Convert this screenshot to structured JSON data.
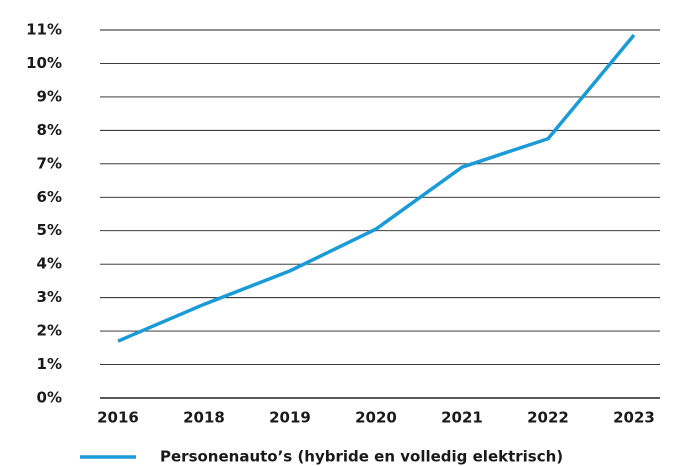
{
  "chart_data": {
    "type": "line",
    "categories": [
      "2016",
      "2018",
      "2019",
      "2020",
      "2021",
      "2022",
      "2023"
    ],
    "series": [
      {
        "name": "Personenauto’s (hybride en volledig elektrisch)",
        "color": "#1a9ad6",
        "values": [
          1.7,
          2.8,
          3.8,
          5.05,
          6.9,
          7.75,
          10.85
        ]
      }
    ],
    "ylim": [
      0,
      11
    ],
    "yticks": [
      {
        "value": 0,
        "label": "0%"
      },
      {
        "value": 1,
        "label": "1%"
      },
      {
        "value": 2,
        "label": "2%"
      },
      {
        "value": 3,
        "label": "3%"
      },
      {
        "value": 4,
        "label": "4%"
      },
      {
        "value": 5,
        "label": "5%"
      },
      {
        "value": 6,
        "label": "6%"
      },
      {
        "value": 7,
        "label": "7%"
      },
      {
        "value": 8,
        "label": "8%"
      },
      {
        "value": 9,
        "label": "9%"
      },
      {
        "value": 10,
        "label": "10%"
      },
      {
        "value": 11,
        "label": "11%"
      }
    ],
    "grid": true,
    "legend": "bottom"
  }
}
